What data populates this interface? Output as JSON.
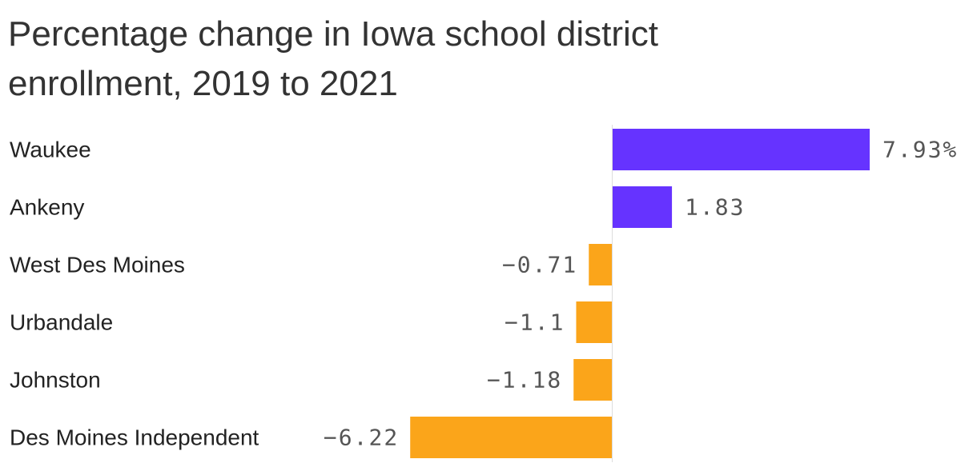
{
  "chart_data": {
    "type": "bar",
    "orientation": "horizontal",
    "title": "Percentage change in Iowa school district enrollment, 2019 to 2021",
    "categories": [
      "Waukee",
      "Ankeny",
      "West Des Moines",
      "Urbandale",
      "Johnston",
      "Des Moines Independent"
    ],
    "values": [
      7.93,
      1.83,
      -0.71,
      -1.1,
      -1.18,
      -6.22
    ],
    "value_labels": [
      "7.93%",
      "1.83",
      "−0.71",
      "−1.1",
      "−1.18",
      "−6.22"
    ],
    "xlim": [
      -6.22,
      7.93
    ],
    "grid": false,
    "legend": "none",
    "colors": {
      "positive": "#6633ff",
      "negative": "#fba51a",
      "zero_line": "#dddddd"
    }
  }
}
